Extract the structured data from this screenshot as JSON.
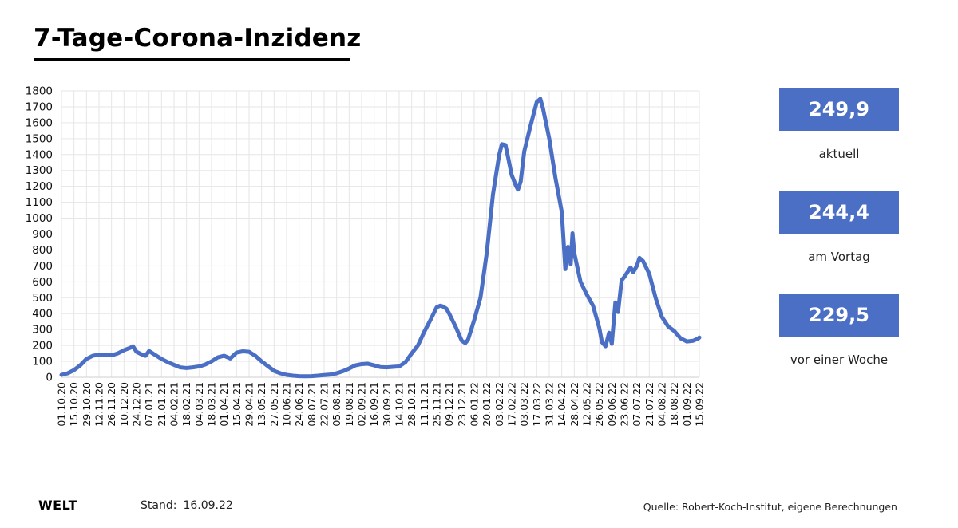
{
  "header": {
    "title": "7-Tage-Corona-Inzidenz"
  },
  "kpis": [
    {
      "value": "249,9",
      "label": "aktuell"
    },
    {
      "value": "244,4",
      "label": "am Vortag"
    },
    {
      "value": "229,5",
      "label": "vor einer Woche"
    }
  ],
  "footer": {
    "logo": "WELT",
    "stand_label": "Stand:",
    "stand_date": "16.09.22",
    "source": "Quelle: Robert-Koch-Institut, eigene Berechnungen"
  },
  "colors": {
    "line": "#4a6fc4",
    "grid": "#e6e6e6",
    "kpi_box": "#4a6fc4"
  },
  "chart_data": {
    "type": "line",
    "title": "7-Tage-Corona-Inzidenz",
    "xlabel": "",
    "ylabel": "",
    "ylim": [
      0,
      1800
    ],
    "yticks": [
      0,
      100,
      200,
      300,
      400,
      500,
      600,
      700,
      800,
      900,
      1000,
      1100,
      1200,
      1300,
      1400,
      1500,
      1600,
      1700,
      1800
    ],
    "x_range": [
      "01.10.20",
      "15.09.22"
    ],
    "grid": true,
    "xticks": [
      "01.10.20",
      "15.10.20",
      "29.10.20",
      "12.11.20",
      "26.11.20",
      "10.12.20",
      "24.12.20",
      "07.01.21",
      "21.01.21",
      "04.02.21",
      "18.02.21",
      "04.03.21",
      "18.03.21",
      "01.04.21",
      "15.04.21",
      "29.04.21",
      "13.05.21",
      "27.05.21",
      "10.06.21",
      "24.06.21",
      "08.07.21",
      "22.07.21",
      "05.08.21",
      "19.08.21",
      "02.09.21",
      "16.09.21",
      "30.09.21",
      "14.10.21",
      "28.10.21",
      "11.11.21",
      "25.11.21",
      "09.12.21",
      "23.12.21",
      "06.01.22",
      "20.01.22",
      "03.02.22",
      "17.02.22",
      "03.03.22",
      "17.03.22",
      "31.03.22",
      "14.04.22",
      "28.04.22",
      "12.05.22",
      "26.05.22",
      "09.06.22",
      "23.06.22",
      "07.07.22",
      "21.07.22",
      "04.08.22",
      "18.08.22",
      "01.09.22",
      "15.09.22"
    ],
    "series": [
      {
        "points": [
          [
            "01.10.20",
            15
          ],
          [
            "08.10.20",
            25
          ],
          [
            "15.10.20",
            45
          ],
          [
            "22.10.20",
            75
          ],
          [
            "29.10.20",
            115
          ],
          [
            "05.11.20",
            135
          ],
          [
            "12.11.20",
            142
          ],
          [
            "19.11.20",
            140
          ],
          [
            "26.11.20",
            138
          ],
          [
            "03.12.20",
            150
          ],
          [
            "10.12.20",
            170
          ],
          [
            "17.12.20",
            185
          ],
          [
            "20.12.20",
            195
          ],
          [
            "24.12.20",
            160
          ],
          [
            "31.12.20",
            140
          ],
          [
            "03.01.21",
            135
          ],
          [
            "07.01.21",
            165
          ],
          [
            "14.01.21",
            140
          ],
          [
            "21.01.21",
            115
          ],
          [
            "28.01.21",
            95
          ],
          [
            "04.02.21",
            78
          ],
          [
            "11.02.21",
            62
          ],
          [
            "18.02.21",
            58
          ],
          [
            "25.02.21",
            62
          ],
          [
            "04.03.21",
            68
          ],
          [
            "11.03.21",
            80
          ],
          [
            "18.03.21",
            100
          ],
          [
            "25.03.21",
            125
          ],
          [
            "01.04.21",
            135
          ],
          [
            "08.04.21",
            118
          ],
          [
            "15.04.21",
            155
          ],
          [
            "22.04.21",
            163
          ],
          [
            "29.04.21",
            160
          ],
          [
            "06.05.21",
            135
          ],
          [
            "13.05.21",
            100
          ],
          [
            "20.05.21",
            70
          ],
          [
            "27.05.21",
            40
          ],
          [
            "03.06.21",
            25
          ],
          [
            "10.06.21",
            15
          ],
          [
            "17.06.21",
            10
          ],
          [
            "24.06.21",
            7
          ],
          [
            "01.07.21",
            6
          ],
          [
            "08.07.21",
            7
          ],
          [
            "15.07.21",
            10
          ],
          [
            "22.07.21",
            14
          ],
          [
            "29.07.21",
            17
          ],
          [
            "05.08.21",
            25
          ],
          [
            "12.08.21",
            38
          ],
          [
            "19.08.21",
            55
          ],
          [
            "26.08.21",
            75
          ],
          [
            "02.09.21",
            83
          ],
          [
            "09.09.21",
            85
          ],
          [
            "16.09.21",
            75
          ],
          [
            "23.09.21",
            64
          ],
          [
            "30.09.21",
            62
          ],
          [
            "07.10.21",
            65
          ],
          [
            "14.10.21",
            68
          ],
          [
            "21.10.21",
            95
          ],
          [
            "28.10.21",
            150
          ],
          [
            "04.11.21",
            200
          ],
          [
            "11.11.21",
            285
          ],
          [
            "18.11.21",
            360
          ],
          [
            "25.11.21",
            440
          ],
          [
            "29.11.21",
            450
          ],
          [
            "02.12.21",
            445
          ],
          [
            "06.12.21",
            430
          ],
          [
            "09.12.21",
            400
          ],
          [
            "16.12.21",
            320
          ],
          [
            "23.12.21",
            230
          ],
          [
            "27.12.21",
            215
          ],
          [
            "30.12.21",
            235
          ],
          [
            "06.01.22",
            360
          ],
          [
            "13.01.22",
            500
          ],
          [
            "20.01.22",
            780
          ],
          [
            "27.01.22",
            1150
          ],
          [
            "03.02.22",
            1400
          ],
          [
            "06.02.22",
            1465
          ],
          [
            "10.02.22",
            1460
          ],
          [
            "13.02.22",
            1380
          ],
          [
            "17.02.22",
            1270
          ],
          [
            "22.02.22",
            1200
          ],
          [
            "24.02.22",
            1180
          ],
          [
            "27.02.22",
            1230
          ],
          [
            "03.03.22",
            1420
          ],
          [
            "10.03.22",
            1580
          ],
          [
            "17.03.22",
            1730
          ],
          [
            "21.03.22",
            1750
          ],
          [
            "24.03.22",
            1690
          ],
          [
            "31.03.22",
            1500
          ],
          [
            "07.04.22",
            1250
          ],
          [
            "14.04.22",
            1040
          ],
          [
            "18.04.22",
            680
          ],
          [
            "21.04.22",
            820
          ],
          [
            "24.04.22",
            710
          ],
          [
            "26.04.22",
            905
          ],
          [
            "28.04.22",
            780
          ],
          [
            "05.05.22",
            600
          ],
          [
            "12.05.22",
            520
          ],
          [
            "19.05.22",
            450
          ],
          [
            "26.05.22",
            310
          ],
          [
            "29.05.22",
            220
          ],
          [
            "02.06.22",
            195
          ],
          [
            "06.06.22",
            280
          ],
          [
            "09.06.22",
            210
          ],
          [
            "13.06.22",
            470
          ],
          [
            "16.06.22",
            410
          ],
          [
            "20.06.22",
            610
          ],
          [
            "23.06.22",
            630
          ],
          [
            "30.06.22",
            690
          ],
          [
            "03.07.22",
            660
          ],
          [
            "07.07.22",
            700
          ],
          [
            "10.07.22",
            750
          ],
          [
            "14.07.22",
            730
          ],
          [
            "21.07.22",
            650
          ],
          [
            "28.07.22",
            500
          ],
          [
            "04.08.22",
            380
          ],
          [
            "11.08.22",
            320
          ],
          [
            "18.08.22",
            290
          ],
          [
            "25.08.22",
            245
          ],
          [
            "01.09.22",
            225
          ],
          [
            "08.09.22",
            229.5
          ],
          [
            "14.09.22",
            244.4
          ],
          [
            "15.09.22",
            249.9
          ]
        ]
      }
    ]
  }
}
